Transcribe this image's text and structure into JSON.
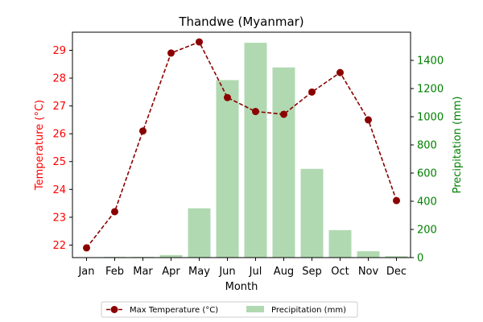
{
  "chart_data": {
    "type": "bar+line",
    "title": "Thandwe (Myanmar)",
    "xlabel": "Month",
    "categories": [
      "Jan",
      "Feb",
      "Mar",
      "Apr",
      "May",
      "Jun",
      "Jul",
      "Aug",
      "Sep",
      "Oct",
      "Nov",
      "Dec"
    ],
    "series": [
      {
        "name": "Max Temperature (°C)",
        "type": "line",
        "axis": "left",
        "color": "#8b0000",
        "values": [
          21.9,
          23.2,
          26.1,
          28.9,
          29.3,
          27.3,
          26.8,
          26.7,
          27.5,
          28.2,
          26.5,
          23.6
        ]
      },
      {
        "name": "Precipitation (mm)",
        "type": "bar",
        "axis": "right",
        "color": "#b0d9b1",
        "values": [
          3,
          5,
          5,
          18,
          350,
          1260,
          1525,
          1350,
          630,
          195,
          45,
          10
        ]
      }
    ],
    "y_left": {
      "label": "Temperature (°C)",
      "color": "#ff0000",
      "range": [
        21.55,
        29.65
      ],
      "ticks": [
        "22",
        "23",
        "24",
        "25",
        "26",
        "27",
        "28",
        "29"
      ]
    },
    "y_right": {
      "label": "Precipitation (mm)",
      "color": "#008000",
      "range": [
        0,
        1600
      ],
      "ticks": [
        "0",
        "200",
        "400",
        "600",
        "800",
        "1000",
        "1200",
        "1400"
      ]
    },
    "legend": {
      "placement": "bottom-center"
    },
    "grid": false
  }
}
